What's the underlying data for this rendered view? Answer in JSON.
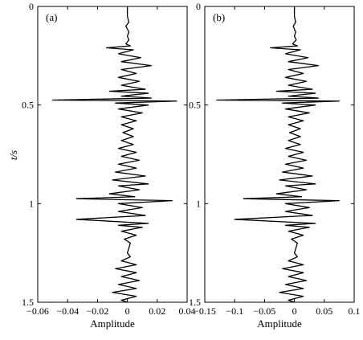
{
  "chart_data": [
    {
      "type": "line",
      "panel_label": "(a)",
      "xlabel": "Amplitude",
      "ylabel": "t/s",
      "xlim": [
        -0.06,
        0.04
      ],
      "ylim": [
        0,
        1.5
      ],
      "y_inverted": true,
      "xticks": [
        -0.06,
        -0.04,
        -0.02,
        0,
        0.02,
        0.04
      ],
      "xtick_labels": [
        "−0.06",
        "−0.04",
        "−0.02",
        "0",
        "0.02",
        "0.04"
      ],
      "yticks": [
        0,
        0.5,
        1,
        1.5
      ],
      "ytick_labels": [
        "0",
        "0.5",
        "1",
        "1.5"
      ],
      "series": [
        {
          "points": [
            [
              0,
              0
            ],
            [
              0,
              0.05
            ],
            [
              0.001,
              0.08
            ],
            [
              -0.001,
              0.1
            ],
            [
              0.001,
              0.13
            ],
            [
              0,
              0.15
            ],
            [
              0.001,
              0.17
            ],
            [
              -0.001,
              0.19
            ],
            [
              0.002,
              0.2
            ],
            [
              -0.014,
              0.21
            ],
            [
              0.004,
              0.22
            ],
            [
              -0.006,
              0.24
            ],
            [
              0.009,
              0.26
            ],
            [
              -0.004,
              0.28
            ],
            [
              0.016,
              0.3
            ],
            [
              -0.004,
              0.32
            ],
            [
              0.006,
              0.34
            ],
            [
              -0.006,
              0.36
            ],
            [
              0.008,
              0.38
            ],
            [
              -0.004,
              0.4
            ],
            [
              0.012,
              0.42
            ],
            [
              -0.012,
              0.43
            ],
            [
              0.014,
              0.44
            ],
            [
              -0.004,
              0.455
            ],
            [
              0.016,
              0.465
            ],
            [
              -0.05,
              0.475
            ],
            [
              0.033,
              0.48
            ],
            [
              -0.008,
              0.49
            ],
            [
              0.014,
              0.5
            ],
            [
              -0.006,
              0.52
            ],
            [
              0.01,
              0.54
            ],
            [
              -0.004,
              0.56
            ],
            [
              0.006,
              0.58
            ],
            [
              -0.004,
              0.6
            ],
            [
              0.004,
              0.62
            ],
            [
              -0.003,
              0.64
            ],
            [
              0.004,
              0.66
            ],
            [
              -0.004,
              0.68
            ],
            [
              0.004,
              0.7
            ],
            [
              -0.006,
              0.72
            ],
            [
              0.006,
              0.74
            ],
            [
              -0.004,
              0.76
            ],
            [
              0.008,
              0.78
            ],
            [
              -0.006,
              0.8
            ],
            [
              0.006,
              0.82
            ],
            [
              -0.008,
              0.84
            ],
            [
              0.012,
              0.86
            ],
            [
              -0.01,
              0.88
            ],
            [
              0.014,
              0.9
            ],
            [
              -0.006,
              0.91
            ],
            [
              0.008,
              0.93
            ],
            [
              -0.012,
              0.95
            ],
            [
              0.005,
              0.965
            ],
            [
              -0.034,
              0.975
            ],
            [
              0.03,
              0.985
            ],
            [
              -0.006,
              1.0
            ],
            [
              0.01,
              1.02
            ],
            [
              -0.006,
              1.04
            ],
            [
              0.012,
              1.06
            ],
            [
              -0.034,
              1.08
            ],
            [
              0.014,
              1.1
            ],
            [
              -0.006,
              1.11
            ],
            [
              0.01,
              1.12
            ],
            [
              -0.004,
              1.14
            ],
            [
              0.006,
              1.16
            ],
            [
              -0.002,
              1.18
            ],
            [
              0.002,
              1.2
            ],
            [
              0,
              1.25
            ],
            [
              0.002,
              1.27
            ],
            [
              -0.004,
              1.29
            ],
            [
              0.006,
              1.31
            ],
            [
              -0.008,
              1.33
            ],
            [
              0.006,
              1.35
            ],
            [
              -0.004,
              1.37
            ],
            [
              0.008,
              1.39
            ],
            [
              -0.006,
              1.41
            ],
            [
              0.006,
              1.43
            ],
            [
              -0.01,
              1.45
            ],
            [
              0.006,
              1.47
            ],
            [
              -0.004,
              1.49
            ],
            [
              0,
              1.5
            ]
          ]
        }
      ]
    },
    {
      "type": "line",
      "panel_label": "(b)",
      "xlabel": "Amplitude",
      "ylabel": "",
      "xlim": [
        -0.15,
        0.1
      ],
      "ylim": [
        0,
        1.5
      ],
      "y_inverted": true,
      "xticks": [
        -0.15,
        -0.1,
        -0.05,
        0,
        0.05,
        0.1
      ],
      "xtick_labels": [
        "−0.15",
        "−0.1",
        "−0.05",
        "0",
        "0.05",
        "0.1"
      ],
      "yticks": [
        0,
        0.5,
        1,
        1.5
      ],
      "ytick_labels": [
        "0",
        "0.5",
        "1",
        "1.5"
      ],
      "series": [
        {
          "points": [
            [
              0,
              0
            ],
            [
              0,
              0.05
            ],
            [
              0.002,
              0.08
            ],
            [
              -0.002,
              0.1
            ],
            [
              0.002,
              0.13
            ],
            [
              0,
              0.15
            ],
            [
              0.003,
              0.17
            ],
            [
              -0.003,
              0.19
            ],
            [
              0.005,
              0.2
            ],
            [
              -0.04,
              0.21
            ],
            [
              0.01,
              0.22
            ],
            [
              -0.015,
              0.24
            ],
            [
              0.023,
              0.26
            ],
            [
              -0.01,
              0.28
            ],
            [
              0.04,
              0.3
            ],
            [
              -0.01,
              0.32
            ],
            [
              0.015,
              0.34
            ],
            [
              -0.015,
              0.36
            ],
            [
              0.02,
              0.38
            ],
            [
              -0.01,
              0.4
            ],
            [
              0.03,
              0.42
            ],
            [
              -0.03,
              0.43
            ],
            [
              0.035,
              0.44
            ],
            [
              -0.01,
              0.455
            ],
            [
              0.04,
              0.465
            ],
            [
              -0.13,
              0.475
            ],
            [
              0.075,
              0.48
            ],
            [
              -0.02,
              0.49
            ],
            [
              0.035,
              0.5
            ],
            [
              -0.015,
              0.52
            ],
            [
              0.025,
              0.54
            ],
            [
              -0.01,
              0.56
            ],
            [
              0.015,
              0.58
            ],
            [
              -0.01,
              0.6
            ],
            [
              0.01,
              0.62
            ],
            [
              -0.008,
              0.64
            ],
            [
              0.01,
              0.66
            ],
            [
              -0.01,
              0.68
            ],
            [
              0.01,
              0.7
            ],
            [
              -0.015,
              0.72
            ],
            [
              0.015,
              0.74
            ],
            [
              -0.01,
              0.76
            ],
            [
              0.02,
              0.78
            ],
            [
              -0.015,
              0.8
            ],
            [
              0.015,
              0.82
            ],
            [
              -0.02,
              0.84
            ],
            [
              0.03,
              0.86
            ],
            [
              -0.025,
              0.88
            ],
            [
              0.035,
              0.9
            ],
            [
              -0.015,
              0.91
            ],
            [
              0.02,
              0.93
            ],
            [
              -0.03,
              0.95
            ],
            [
              0.012,
              0.965
            ],
            [
              -0.085,
              0.975
            ],
            [
              0.075,
              0.985
            ],
            [
              -0.015,
              1.0
            ],
            [
              0.025,
              1.02
            ],
            [
              -0.015,
              1.04
            ],
            [
              0.03,
              1.06
            ],
            [
              -0.1,
              1.08
            ],
            [
              0.035,
              1.1
            ],
            [
              -0.015,
              1.11
            ],
            [
              0.025,
              1.12
            ],
            [
              -0.01,
              1.14
            ],
            [
              0.015,
              1.16
            ],
            [
              -0.005,
              1.18
            ],
            [
              0.005,
              1.2
            ],
            [
              0,
              1.25
            ],
            [
              0.005,
              1.27
            ],
            [
              -0.01,
              1.29
            ],
            [
              0.015,
              1.31
            ],
            [
              -0.02,
              1.33
            ],
            [
              0.015,
              1.35
            ],
            [
              -0.01,
              1.37
            ],
            [
              0.02,
              1.39
            ],
            [
              -0.015,
              1.41
            ],
            [
              0.015,
              1.43
            ],
            [
              -0.025,
              1.45
            ],
            [
              0.015,
              1.47
            ],
            [
              -0.01,
              1.49
            ],
            [
              0,
              1.5
            ]
          ]
        }
      ]
    }
  ]
}
